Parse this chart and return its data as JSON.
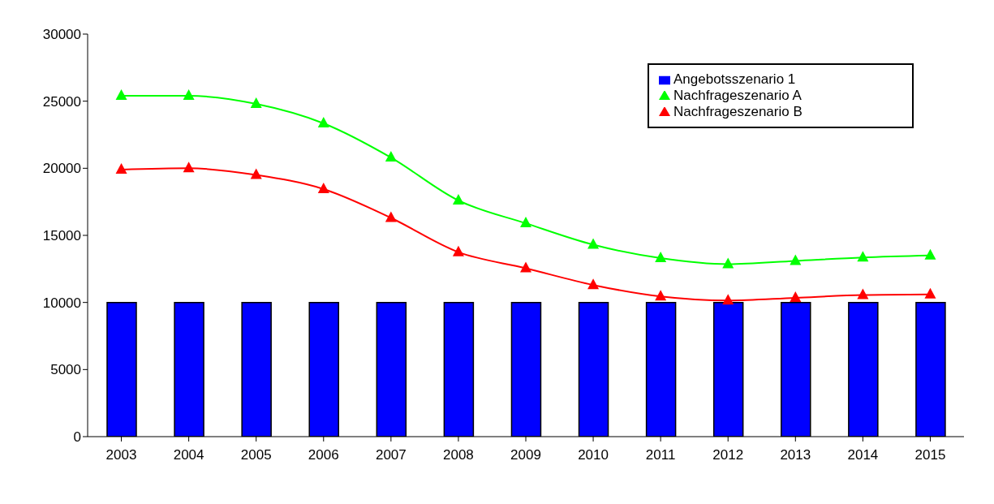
{
  "chart_data": {
    "type": "bar",
    "categories": [
      "2003",
      "2004",
      "2005",
      "2006",
      "2007",
      "2008",
      "2009",
      "2010",
      "2011",
      "2012",
      "2013",
      "2014",
      "2015"
    ],
    "series": [
      {
        "name": "Angebotsszenario 1",
        "color": "#0000ff",
        "values": [
          10000,
          10000,
          10000,
          10000,
          10000,
          10000,
          10000,
          10000,
          10000,
          10000,
          10000,
          10000,
          10000
        ]
      },
      {
        "name": "Nachfrageszenario A",
        "type": "line",
        "color": "#00ff00",
        "values": [
          25400,
          25400,
          24800,
          23350,
          20800,
          17600,
          15900,
          14300,
          13300,
          12850,
          13100,
          13350,
          13500
        ]
      },
      {
        "name": "Nachfrageszenario B",
        "type": "line",
        "color": "#ff0000",
        "values": [
          19900,
          20000,
          19500,
          18450,
          16300,
          13750,
          12550,
          11300,
          10450,
          10150,
          10350,
          10550,
          10600
        ]
      }
    ],
    "ylim": [
      0,
      30000
    ],
    "yticks": [
      0,
      5000,
      10000,
      15000,
      20000,
      25000,
      30000
    ],
    "grid": false,
    "legend": "top right",
    "marker": "triangle"
  }
}
